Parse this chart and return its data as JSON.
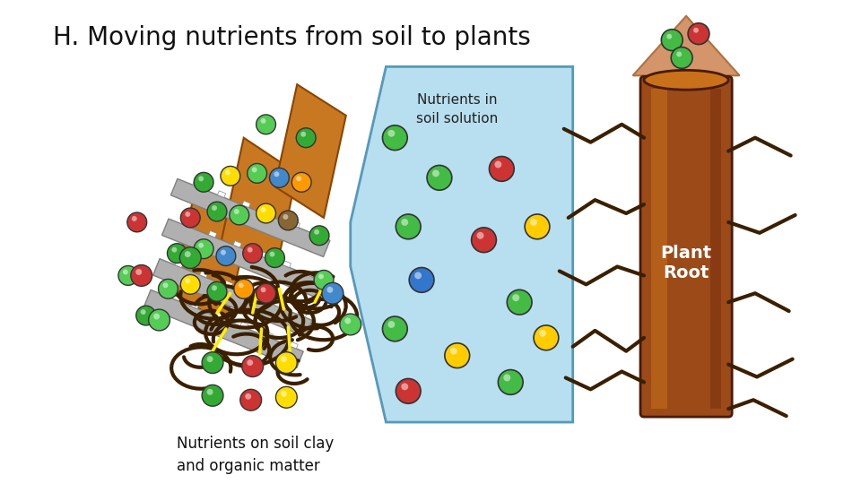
{
  "title": "H. Moving nutrients from soil to plants",
  "title_fontsize": 20,
  "label_nutrients_soil": "Nutrients in\nsoil solution",
  "label_plant_root": "Plant\nRoot",
  "label_nutrients_clay": "Nutrients on soil clay\nand organic matter",
  "bg_color": "#ffffff",
  "soil_solution_color": "#b8dff0",
  "soil_solution_edge": "#5599bb",
  "root_color_dark": "#7a3010",
  "root_color_mid": "#9b4a18",
  "root_color_light": "#c8701a",
  "root_edge": "#4a1a08",
  "upward_arrow_color": "#d4956a",
  "upward_arrow_edge": "#b07040",
  "clay_plate_gray": "#b0b0b0",
  "clay_plate_edge": "#808080",
  "clay_brown": "#c87820",
  "clay_brown_dark": "#8B4500",
  "organic_color": "#3a2000",
  "yellow_line": "#ffee00",
  "dot_colors": [
    "#33aa33",
    "#cc3333",
    "#ffdd00",
    "#4488cc",
    "#886633",
    "#ff9900",
    "#aaaaaa",
    "#55cc55",
    "#dd6644",
    "#44aa88"
  ],
  "dot_edge": "#222222",
  "sol_dot_colors": [
    "#44bb44",
    "#44bb44",
    "#cc3333",
    "#ffcc00",
    "#3377cc",
    "#44bb44",
    "#ffcc00",
    "#44bb44",
    "#cc3333"
  ],
  "font_family": "Comic Sans MS"
}
